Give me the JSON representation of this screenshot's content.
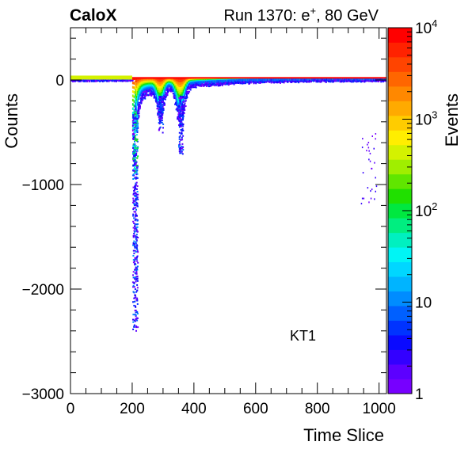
{
  "header": {
    "experiment": "CaloX",
    "run_label": "Run 1370: e",
    "run_sup": "+",
    "run_energy": ", 80 GeV"
  },
  "annotation": "KT1",
  "colorbar": {
    "title": "Events",
    "range": [
      1,
      10000
    ],
    "scale": "log",
    "ticks": [
      {
        "value": 1,
        "base": "1",
        "exp": ""
      },
      {
        "value": 10,
        "base": "10",
        "exp": ""
      },
      {
        "value": 100,
        "base": "10",
        "exp": "2"
      },
      {
        "value": 1000,
        "base": "10",
        "exp": "3"
      },
      {
        "value": 10000,
        "base": "10",
        "exp": "4"
      }
    ],
    "colors": [
      "#7700ff",
      "#5c00ff",
      "#3300ff",
      "#0a0aff",
      "#0033ff",
      "#0060ff",
      "#008cff",
      "#00b4ff",
      "#00d7ff",
      "#00f5f5",
      "#00f0c0",
      "#00ee80",
      "#00e840",
      "#20e000",
      "#60e600",
      "#a0ee00",
      "#d4f200",
      "#ffee00",
      "#ffcc00",
      "#ffaa00",
      "#ff8800",
      "#ff6600",
      "#ff4400",
      "#ff2200",
      "#ff0000"
    ]
  },
  "chart_data": {
    "type": "heatmap",
    "title": "",
    "xlabel": "Time Slice",
    "ylabel": "Counts",
    "xlim": [
      0,
      1024
    ],
    "ylim": [
      -3000,
      500
    ],
    "xticks": [
      0,
      200,
      400,
      600,
      800,
      1000
    ],
    "yticks": [
      -3000,
      -2000,
      -1000,
      0
    ],
    "grid": false,
    "description_points": {
      "baseline_counts": 20,
      "main_pulse_time": 205,
      "main_pulse_min_counts": -2400,
      "secondary_pulse_time": 290,
      "secondary_pulse_min_counts": -500,
      "tertiary_pulse_time": 355,
      "tertiary_pulse_min_counts": -700,
      "late_feature_time": 975,
      "late_feature_min_counts": -1200
    }
  }
}
